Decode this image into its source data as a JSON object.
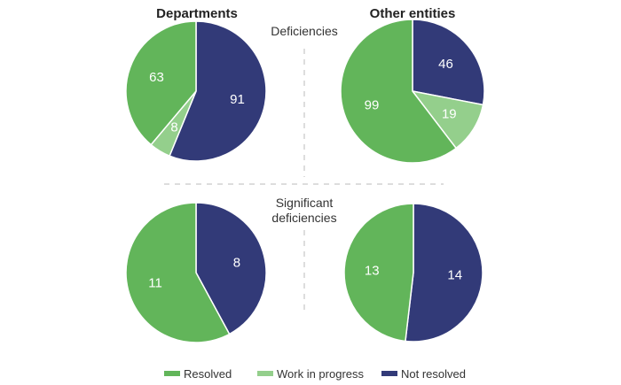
{
  "chart_data": {
    "type": "pie",
    "column_titles": [
      "Departments",
      "Other entities"
    ],
    "row_labels": [
      "Deficiencies",
      "Significant deficiencies"
    ],
    "legend": {
      "position": "bottom",
      "entries": [
        "Resolved",
        "Work in progress",
        "Not resolved"
      ]
    },
    "colors": {
      "Resolved": "#62b55a",
      "Work in progress": "#94cf8c",
      "Not resolved": "#323a78"
    },
    "pies": [
      {
        "column": "Departments",
        "row": "Deficiencies",
        "slices": [
          {
            "category": "Not resolved",
            "value": 91
          },
          {
            "category": "Work in progress",
            "value": 8
          },
          {
            "category": "Resolved",
            "value": 63
          }
        ]
      },
      {
        "column": "Other entities",
        "row": "Deficiencies",
        "slices": [
          {
            "category": "Not resolved",
            "value": 46
          },
          {
            "category": "Work in progress",
            "value": 19
          },
          {
            "category": "Resolved",
            "value": 99
          }
        ]
      },
      {
        "column": "Departments",
        "row": "Significant deficiencies",
        "slices": [
          {
            "category": "Not resolved",
            "value": 8
          },
          {
            "category": "Resolved",
            "value": 11
          }
        ]
      },
      {
        "column": "Other entities",
        "row": "Significant deficiencies",
        "slices": [
          {
            "category": "Not resolved",
            "value": 14
          },
          {
            "category": "Resolved",
            "value": 13
          }
        ]
      }
    ]
  }
}
